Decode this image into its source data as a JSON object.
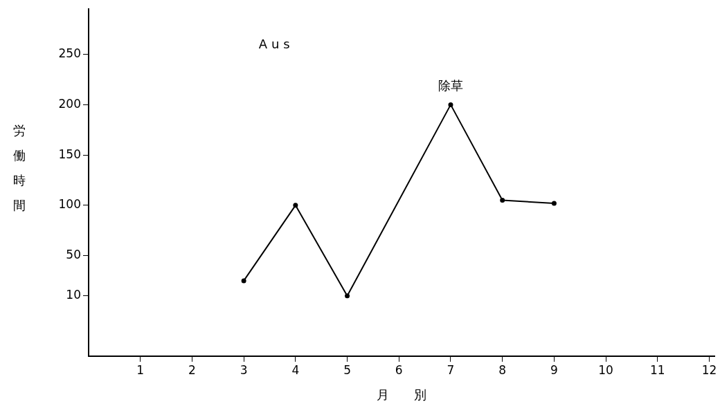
{
  "chart_data": {
    "type": "line",
    "title": "Aus",
    "xlabel": "月　　別",
    "ylabel": "労働時間",
    "x": [
      3,
      4,
      5,
      7,
      8,
      9
    ],
    "series": [
      {
        "color": "#000000",
        "values": [
          25,
          100,
          10,
          200,
          105,
          102
        ]
      }
    ],
    "xlim": [
      0,
      12.1
    ],
    "xticks": [
      1,
      2,
      3,
      4,
      5,
      6,
      7,
      8,
      9,
      10,
      11,
      12
    ],
    "ylim": [
      -50,
      295
    ],
    "yticks": [
      10,
      50,
      100,
      150,
      200,
      250
    ],
    "annotations": [
      {
        "text": "除草",
        "x": 7,
        "y": 200
      }
    ],
    "marker": "circle",
    "line_style": "solid",
    "grid": false,
    "legend": false
  }
}
